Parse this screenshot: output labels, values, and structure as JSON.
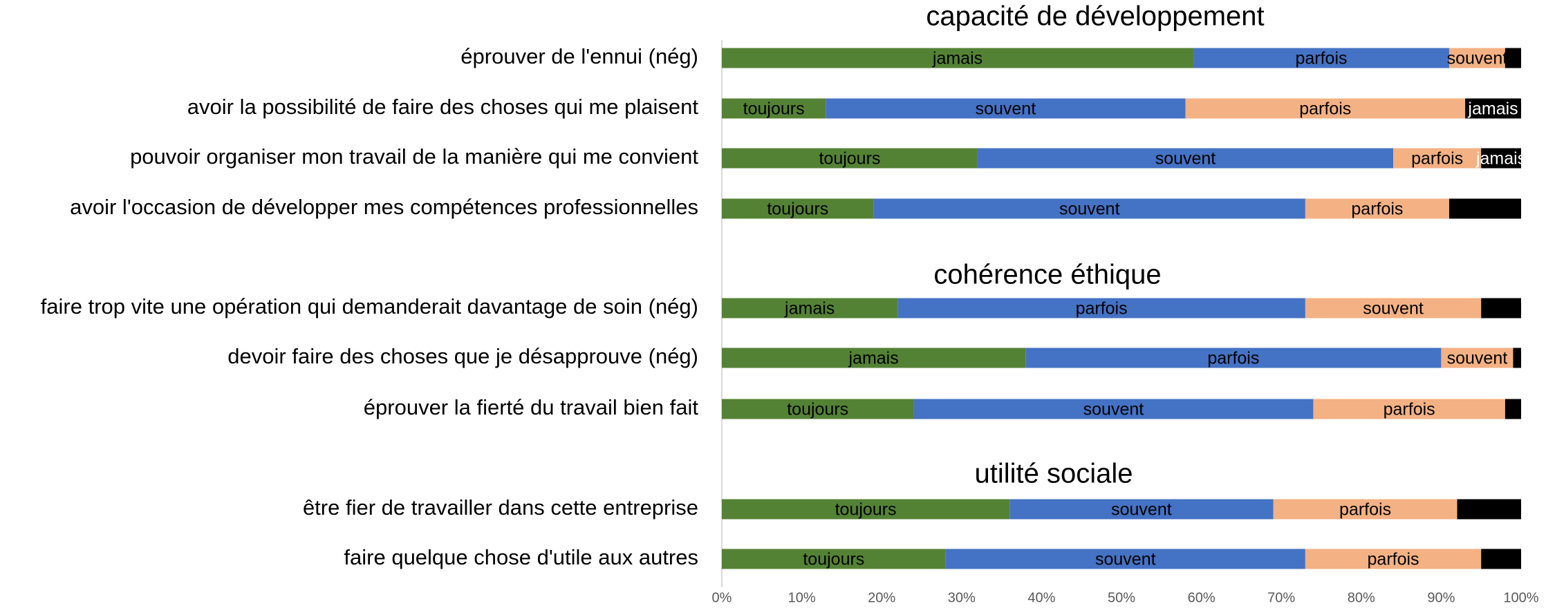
{
  "chart_data": {
    "type": "bar",
    "orientation": "horizontal",
    "stacked": true,
    "colors": [
      "#548235",
      "#4472c4",
      "#f4b183",
      "#000000"
    ],
    "xlim": [
      0,
      100
    ],
    "xticks": [
      {
        "value": 0,
        "label": "0%"
      },
      {
        "value": 10,
        "label": "10%"
      },
      {
        "value": 20,
        "label": "20%"
      },
      {
        "value": 30,
        "label": "30%"
      },
      {
        "value": 40,
        "label": "40%"
      },
      {
        "value": 50,
        "label": "50%"
      },
      {
        "value": 60,
        "label": "60%"
      },
      {
        "value": 70,
        "label": "70%"
      },
      {
        "value": 80,
        "label": "80%"
      },
      {
        "value": 90,
        "label": "90%"
      },
      {
        "value": 100,
        "label": "100%"
      }
    ],
    "groups": [
      {
        "title": "capacité de développement",
        "categories": [
          "éprouver de l'ennui (nég)",
          "avoir la possibilité de faire des choses qui me plaisent",
          "pouvoir organiser mon travail de la manière qui me convient",
          "avoir l'occasion de développer mes compétences professionnelles"
        ],
        "values": [
          [
            59,
            32,
            7,
            2
          ],
          [
            13,
            45,
            35,
            7
          ],
          [
            32,
            52,
            11,
            5
          ],
          [
            19,
            54,
            18,
            9
          ]
        ],
        "segment_labels": [
          [
            "jamais",
            "parfois",
            "souvent",
            null
          ],
          [
            "toujours",
            "souvent",
            "parfois",
            "jamais"
          ],
          [
            "toujours",
            "souvent",
            "parfois",
            "jamais"
          ],
          [
            "toujours",
            "souvent",
            "parfois",
            null
          ]
        ]
      },
      {
        "title": "cohérence éthique",
        "categories": [
          "faire trop vite une opération qui demanderait davantage de soin (nég)",
          "devoir faire des choses que je désapprouve (nég)",
          "éprouver la fierté du travail bien fait"
        ],
        "values": [
          [
            22,
            51,
            22,
            5
          ],
          [
            38,
            52,
            9,
            1
          ],
          [
            24,
            50,
            24,
            2
          ]
        ],
        "segment_labels": [
          [
            "jamais",
            "parfois",
            "souvent",
            null
          ],
          [
            "jamais",
            "parfois",
            "souvent",
            null
          ],
          [
            "toujours",
            "souvent",
            "parfois",
            null
          ]
        ]
      },
      {
        "title": "utilité sociale",
        "categories": [
          "être fier de travailler dans cette entreprise",
          "faire quelque chose d'utile aux autres"
        ],
        "values": [
          [
            36,
            33,
            23,
            8
          ],
          [
            28,
            45,
            22,
            5
          ]
        ],
        "segment_labels": [
          [
            "toujours",
            "souvent",
            "parfois",
            null
          ],
          [
            "toujours",
            "souvent",
            "parfois",
            null
          ]
        ]
      }
    ]
  }
}
